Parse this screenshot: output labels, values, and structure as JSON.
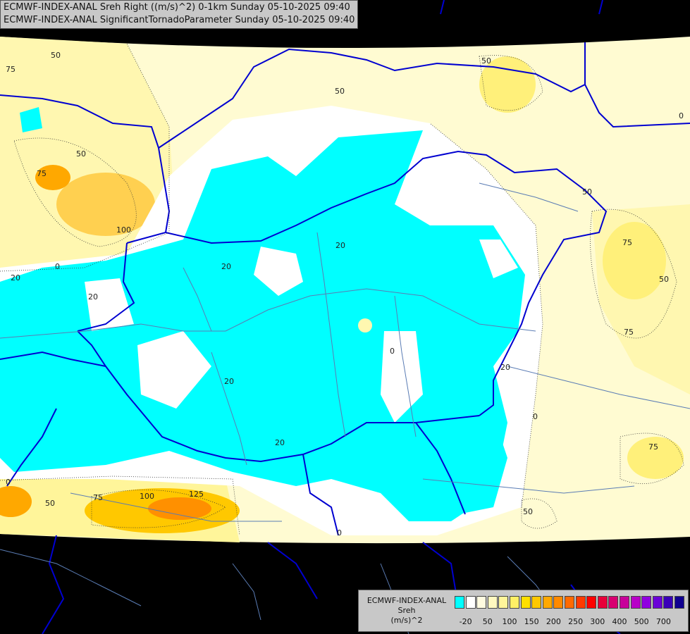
{
  "header": {
    "line1": "ECMWF-INDEX-ANAL Sreh Right ((m/s)^2) 0-1km Sunday 05-10-2025 09:40",
    "line2": "ECMWF-INDEX-ANAL SignificantTornadoParameter Sunday 05-10-2025 09:40"
  },
  "legend": {
    "line1": "ECMWF-INDEX-ANAL",
    "line2": "Sreh",
    "line3": "(m/s)^2",
    "colors": [
      "#00ffff",
      "#ffffff",
      "#fffbe0",
      "#fff8c0",
      "#fff59a",
      "#fff066",
      "#ffe000",
      "#ffc800",
      "#ffa800",
      "#ff8a00",
      "#ff6a00",
      "#ff3a00",
      "#ff0000",
      "#e8003a",
      "#d80070",
      "#c8009a",
      "#b800c8",
      "#9000e0",
      "#6a00d8",
      "#3a00b8",
      "#100090"
    ],
    "ticks": [
      "-20",
      "50",
      "100",
      "150",
      "200",
      "250",
      "300",
      "400",
      "500",
      "700"
    ]
  },
  "contour_labels": [
    "75",
    "50",
    "50",
    "50",
    "0",
    "50",
    "75",
    "100",
    "0",
    "20",
    "20",
    "20",
    "20",
    "0",
    "75",
    "50",
    "75",
    "0",
    "20",
    "0",
    "20",
    "50",
    "75",
    "125",
    "100",
    "75",
    "50",
    "0",
    "20",
    "50"
  ],
  "colors": {
    "background": "#000000",
    "cyan": "#00ffff",
    "pale_yellow": "#fffbd2",
    "yellow": "#fff59a",
    "orange": "#ffa800",
    "red_orange": "#ff6a00",
    "border": "#0000d0",
    "river": "#5a7cb4"
  }
}
